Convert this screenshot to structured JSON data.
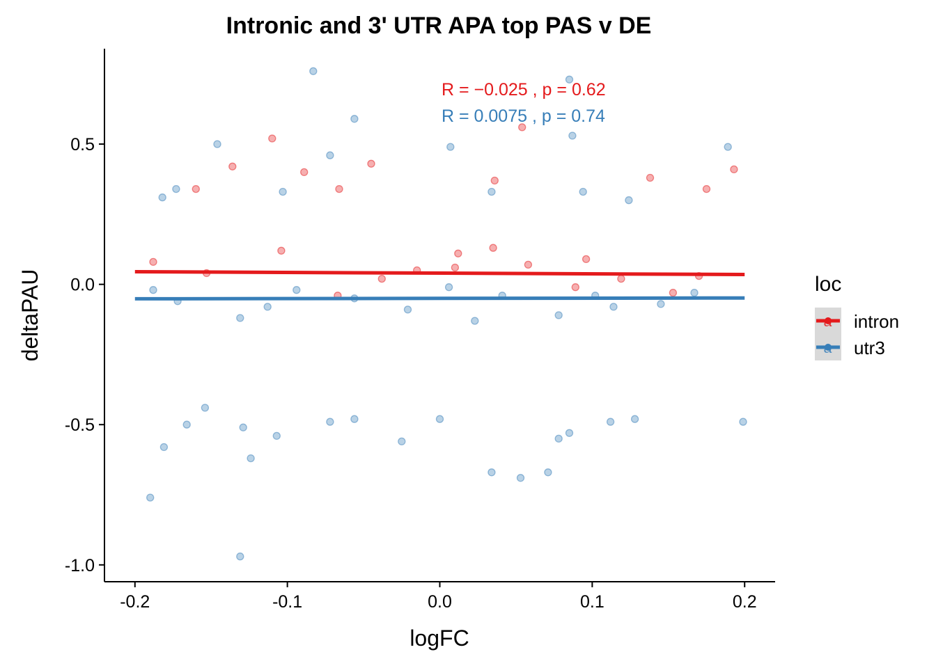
{
  "chart_data": {
    "type": "scatter",
    "title": "Intronic and 3' UTR APA top PAS v DE",
    "xlabel": "logFC",
    "ylabel": "deltaPAU",
    "xlim": [
      -0.22,
      0.22
    ],
    "ylim": [
      -1.06,
      0.84
    ],
    "xticks": [
      -0.2,
      -0.1,
      0.0,
      0.1,
      0.2
    ],
    "xtick_labels": [
      "-0.2",
      "-0.1",
      "0.0",
      "0.1",
      "0.2"
    ],
    "yticks": [
      -1.0,
      -0.5,
      0.0,
      0.5
    ],
    "ytick_labels": [
      "-1.0",
      "-0.5",
      "0.0",
      "0.5"
    ],
    "grid": false,
    "legend": {
      "title": "loc",
      "position": "right",
      "key_letter": "a"
    },
    "series": [
      {
        "name": "intron",
        "color": "#E41A1C",
        "regression": {
          "slope": -0.025,
          "intercept": 0.04,
          "x_range": [
            -0.2,
            0.2
          ]
        },
        "stat_label": "R = −0.025 , p = 0.62",
        "points": [
          [
            -0.153,
            0.04
          ],
          [
            -0.038,
            0.02
          ],
          [
            0.01,
            0.06
          ],
          [
            0.089,
            -0.01
          ],
          [
            0.17,
            0.03
          ],
          [
            0.058,
            0.07
          ],
          [
            -0.104,
            0.12
          ],
          [
            0.119,
            0.02
          ],
          [
            -0.067,
            -0.04
          ],
          [
            0.012,
            0.11
          ],
          [
            0.153,
            -0.03
          ],
          [
            -0.188,
            0.08
          ],
          [
            0.035,
            0.13
          ],
          [
            -0.015,
            0.05
          ],
          [
            0.096,
            0.09
          ]
        ]
      },
      {
        "name": "utr3",
        "color": "#377EB8",
        "regression": {
          "slope": 0.0075,
          "intercept": -0.05,
          "x_range": [
            -0.2,
            0.2
          ]
        },
        "stat_label": "R = 0.0075 , p = 0.74",
        "points": [
          [
            -0.172,
            -0.06
          ],
          [
            -0.094,
            -0.02
          ],
          [
            -0.021,
            -0.09
          ],
          [
            0.041,
            -0.04
          ],
          [
            0.114,
            -0.08
          ],
          [
            0.167,
            -0.03
          ],
          [
            -0.131,
            -0.12
          ],
          [
            0.006,
            -0.01
          ],
          [
            0.078,
            -0.11
          ],
          [
            -0.056,
            -0.05
          ],
          [
            0.145,
            -0.07
          ],
          [
            -0.188,
            -0.02
          ],
          [
            0.023,
            -0.13
          ],
          [
            0.102,
            -0.04
          ],
          [
            -0.113,
            -0.08
          ]
        ]
      }
    ],
    "outliers": [
      {
        "series": "utr3",
        "x": -0.083,
        "y": 0.76
      },
      {
        "series": "utr3",
        "x": 0.085,
        "y": 0.73
      },
      {
        "series": "utr3",
        "x": -0.056,
        "y": 0.59
      },
      {
        "series": "intron",
        "x": 0.054,
        "y": 0.56
      },
      {
        "series": "utr3",
        "x": 0.087,
        "y": 0.53
      },
      {
        "series": "intron",
        "x": -0.11,
        "y": 0.52
      },
      {
        "series": "utr3",
        "x": -0.146,
        "y": 0.5
      },
      {
        "series": "utr3",
        "x": 0.189,
        "y": 0.49
      },
      {
        "series": "utr3",
        "x": 0.007,
        "y": 0.49
      },
      {
        "series": "utr3",
        "x": -0.072,
        "y": 0.46
      },
      {
        "series": "intron",
        "x": -0.045,
        "y": 0.43
      },
      {
        "series": "intron",
        "x": -0.136,
        "y": 0.42
      },
      {
        "series": "intron",
        "x": 0.193,
        "y": 0.41
      },
      {
        "series": "intron",
        "x": -0.089,
        "y": 0.4
      },
      {
        "series": "intron",
        "x": 0.138,
        "y": 0.38
      },
      {
        "series": "intron",
        "x": 0.036,
        "y": 0.37
      },
      {
        "series": "intron",
        "x": -0.066,
        "y": 0.34
      },
      {
        "series": "intron",
        "x": -0.16,
        "y": 0.34
      },
      {
        "series": "intron",
        "x": 0.175,
        "y": 0.34
      },
      {
        "series": "utr3",
        "x": -0.173,
        "y": 0.34
      },
      {
        "series": "utr3",
        "x": 0.034,
        "y": 0.33
      },
      {
        "series": "utr3",
        "x": -0.103,
        "y": 0.33
      },
      {
        "series": "utr3",
        "x": 0.094,
        "y": 0.33
      },
      {
        "series": "utr3",
        "x": -0.182,
        "y": 0.31
      },
      {
        "series": "utr3",
        "x": 0.124,
        "y": 0.3
      },
      {
        "series": "utr3",
        "x": -0.154,
        "y": -0.44
      },
      {
        "series": "utr3",
        "x": -0.056,
        "y": -0.48
      },
      {
        "series": "utr3",
        "x": 0.0,
        "y": -0.48
      },
      {
        "series": "utr3",
        "x": 0.112,
        "y": -0.49
      },
      {
        "series": "utr3",
        "x": 0.128,
        "y": -0.48
      },
      {
        "series": "utr3",
        "x": -0.072,
        "y": -0.49
      },
      {
        "series": "utr3",
        "x": 0.199,
        "y": -0.49
      },
      {
        "series": "utr3",
        "x": -0.166,
        "y": -0.5
      },
      {
        "series": "utr3",
        "x": -0.129,
        "y": -0.51
      },
      {
        "series": "utr3",
        "x": 0.085,
        "y": -0.53
      },
      {
        "series": "utr3",
        "x": -0.107,
        "y": -0.54
      },
      {
        "series": "utr3",
        "x": 0.078,
        "y": -0.55
      },
      {
        "series": "utr3",
        "x": -0.025,
        "y": -0.56
      },
      {
        "series": "utr3",
        "x": -0.181,
        "y": -0.58
      },
      {
        "series": "utr3",
        "x": -0.124,
        "y": -0.62
      },
      {
        "series": "utr3",
        "x": 0.034,
        "y": -0.67
      },
      {
        "series": "utr3",
        "x": 0.071,
        "y": -0.67
      },
      {
        "series": "utr3",
        "x": 0.053,
        "y": -0.69
      },
      {
        "series": "utr3",
        "x": -0.19,
        "y": -0.76
      },
      {
        "series": "utr3",
        "x": -0.131,
        "y": -0.97
      }
    ]
  }
}
